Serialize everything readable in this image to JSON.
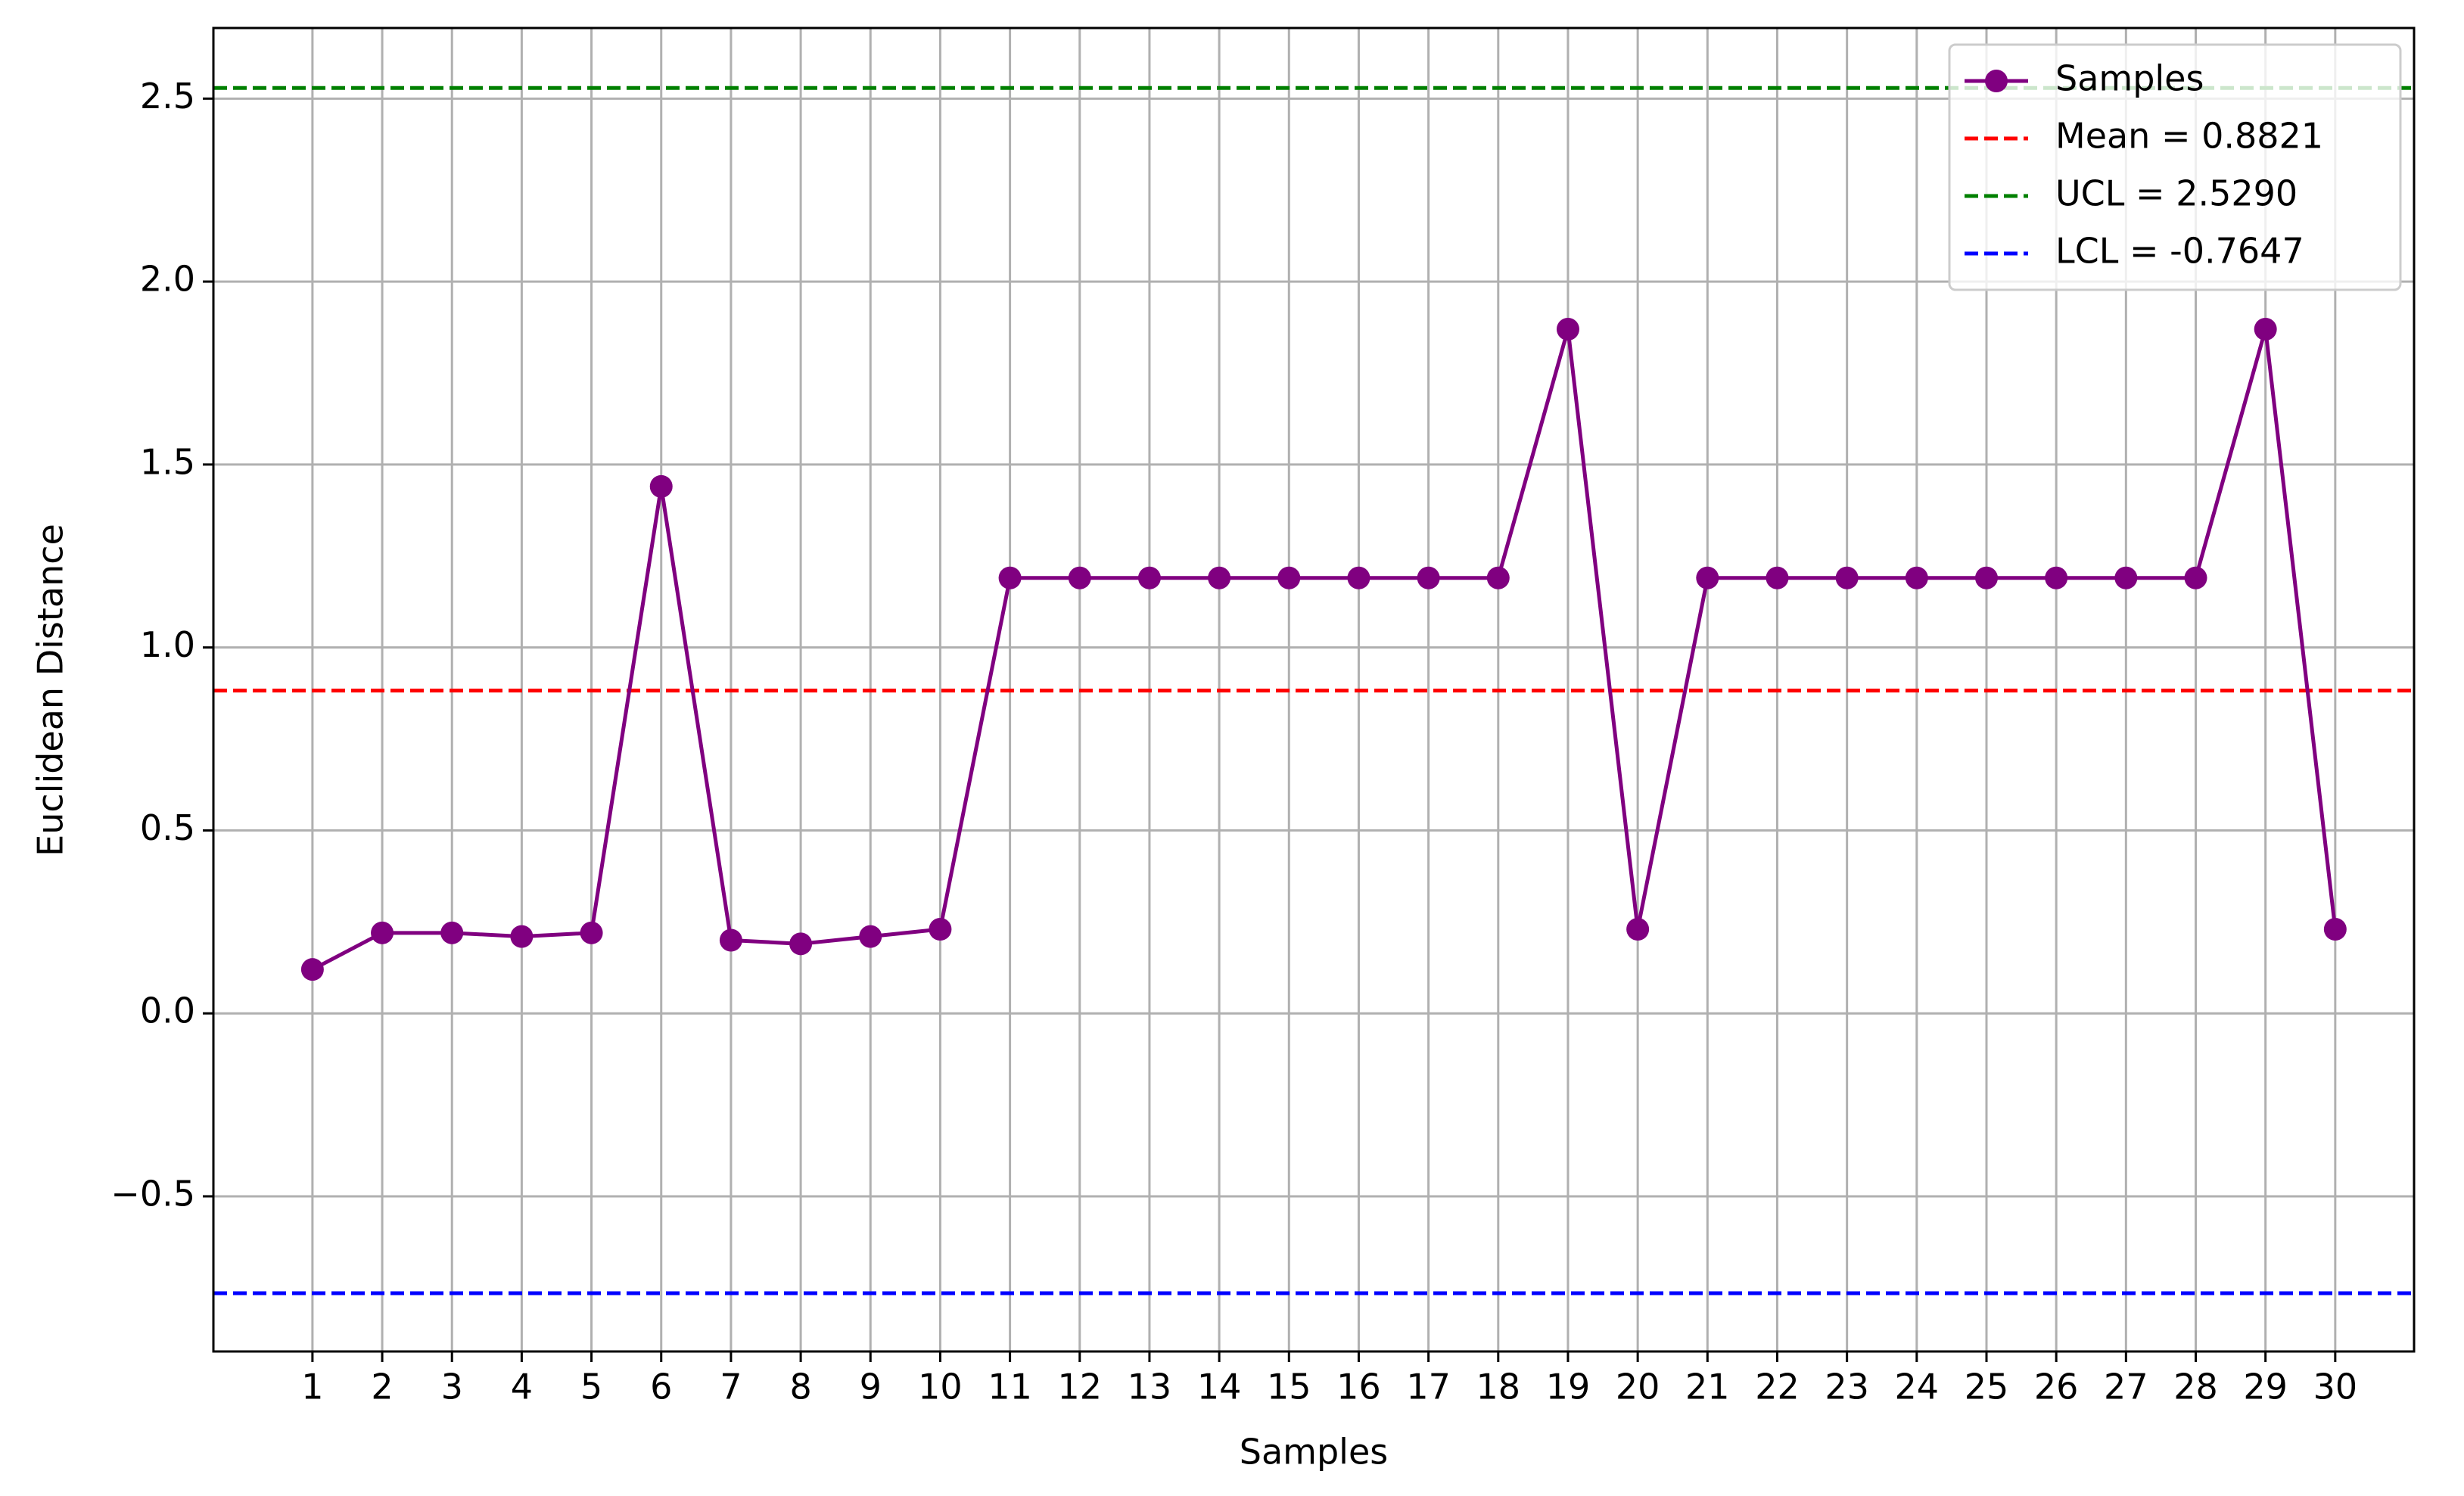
{
  "chart_data": {
    "type": "line",
    "xlabel": "Samples",
    "ylabel": "Euclidean Distance",
    "x": [
      1,
      2,
      3,
      4,
      5,
      6,
      7,
      8,
      9,
      10,
      11,
      12,
      13,
      14,
      15,
      16,
      17,
      18,
      19,
      20,
      21,
      22,
      23,
      24,
      25,
      26,
      27,
      28,
      29,
      30
    ],
    "series": [
      {
        "name": "Samples",
        "color": "#800080",
        "marker": "circle",
        "values": [
          0.12,
          0.22,
          0.22,
          0.21,
          0.22,
          1.44,
          0.2,
          0.19,
          0.21,
          0.23,
          1.19,
          1.19,
          1.19,
          1.19,
          1.19,
          1.19,
          1.19,
          1.19,
          1.87,
          0.23,
          1.19,
          1.19,
          1.19,
          1.19,
          1.19,
          1.19,
          1.19,
          1.19,
          1.87,
          0.23
        ]
      }
    ],
    "reference_lines": [
      {
        "name": "Mean = 0.8821",
        "value": 0.8821,
        "color": "#ff0000"
      },
      {
        "name": "UCL = 2.5290",
        "value": 2.529,
        "color": "#008000"
      },
      {
        "name": "LCL = -0.7647",
        "value": -0.7647,
        "color": "#0000ff"
      }
    ],
    "xlim": [
      -0.42,
      31.13
    ],
    "xticks": [
      1,
      2,
      3,
      4,
      5,
      6,
      7,
      8,
      9,
      10,
      11,
      12,
      13,
      14,
      15,
      16,
      17,
      18,
      19,
      20,
      21,
      22,
      23,
      24,
      25,
      26,
      27,
      28,
      29,
      30
    ],
    "ylim": [
      -0.924,
      2.693
    ],
    "yticks": [
      {
        "value": -0.5,
        "label": "−0.5"
      },
      {
        "value": 0,
        "label": "0.0"
      },
      0.5,
      {
        "value": 1,
        "label": "1.0"
      },
      1.5,
      {
        "value": 2,
        "label": "2.0"
      },
      2.5
    ],
    "grid": true,
    "legend": "upper right"
  }
}
